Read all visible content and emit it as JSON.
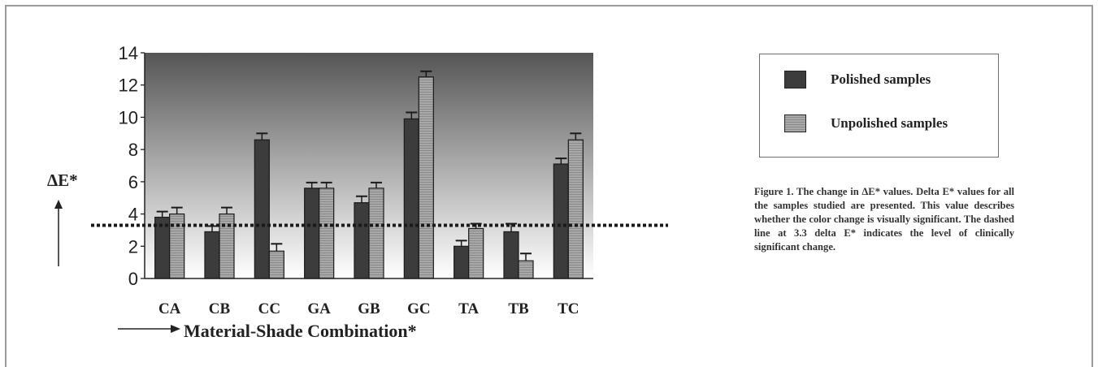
{
  "chart_data": {
    "type": "bar",
    "categories": [
      "CA",
      "CB",
      "CC",
      "GA",
      "GB",
      "GC",
      "TA",
      "TB",
      "TC"
    ],
    "series": [
      {
        "name": "Polished samples",
        "values": [
          3.8,
          2.9,
          8.6,
          5.6,
          4.7,
          9.9,
          2.0,
          2.9,
          7.1
        ],
        "errors": [
          0.35,
          0.35,
          0.4,
          0.35,
          0.4,
          0.4,
          0.35,
          0.5,
          0.35
        ],
        "color": "#3c3c3c"
      },
      {
        "name": "Unpolished samples",
        "values": [
          4.0,
          4.0,
          1.7,
          5.6,
          5.6,
          12.5,
          3.1,
          1.1,
          8.6
        ],
        "errors": [
          0.4,
          0.4,
          0.45,
          0.35,
          0.35,
          0.35,
          0.3,
          0.45,
          0.4
        ],
        "color": "#9a9a9a"
      }
    ],
    "yticks": [
      0,
      2,
      4,
      6,
      8,
      10,
      12,
      14
    ],
    "ylim": [
      0,
      14
    ],
    "ylabel": "ΔE*",
    "xlabel": "Material-Shade Combination*",
    "threshold": {
      "value": 3.3,
      "style": "dotted"
    },
    "grid": false,
    "legend_position": "right"
  },
  "legend": {
    "items": [
      {
        "label": "Polished samples",
        "swatch": "dark"
      },
      {
        "label": "Unpolished samples",
        "swatch": "light"
      }
    ]
  },
  "caption": "Figure 1.  The change in ΔE* values. Delta E* values for all the samples studied are presented. This value describes whether the color change is visually significant. The dashed line at 3.3 delta E* indicates the level of clinically significant change."
}
